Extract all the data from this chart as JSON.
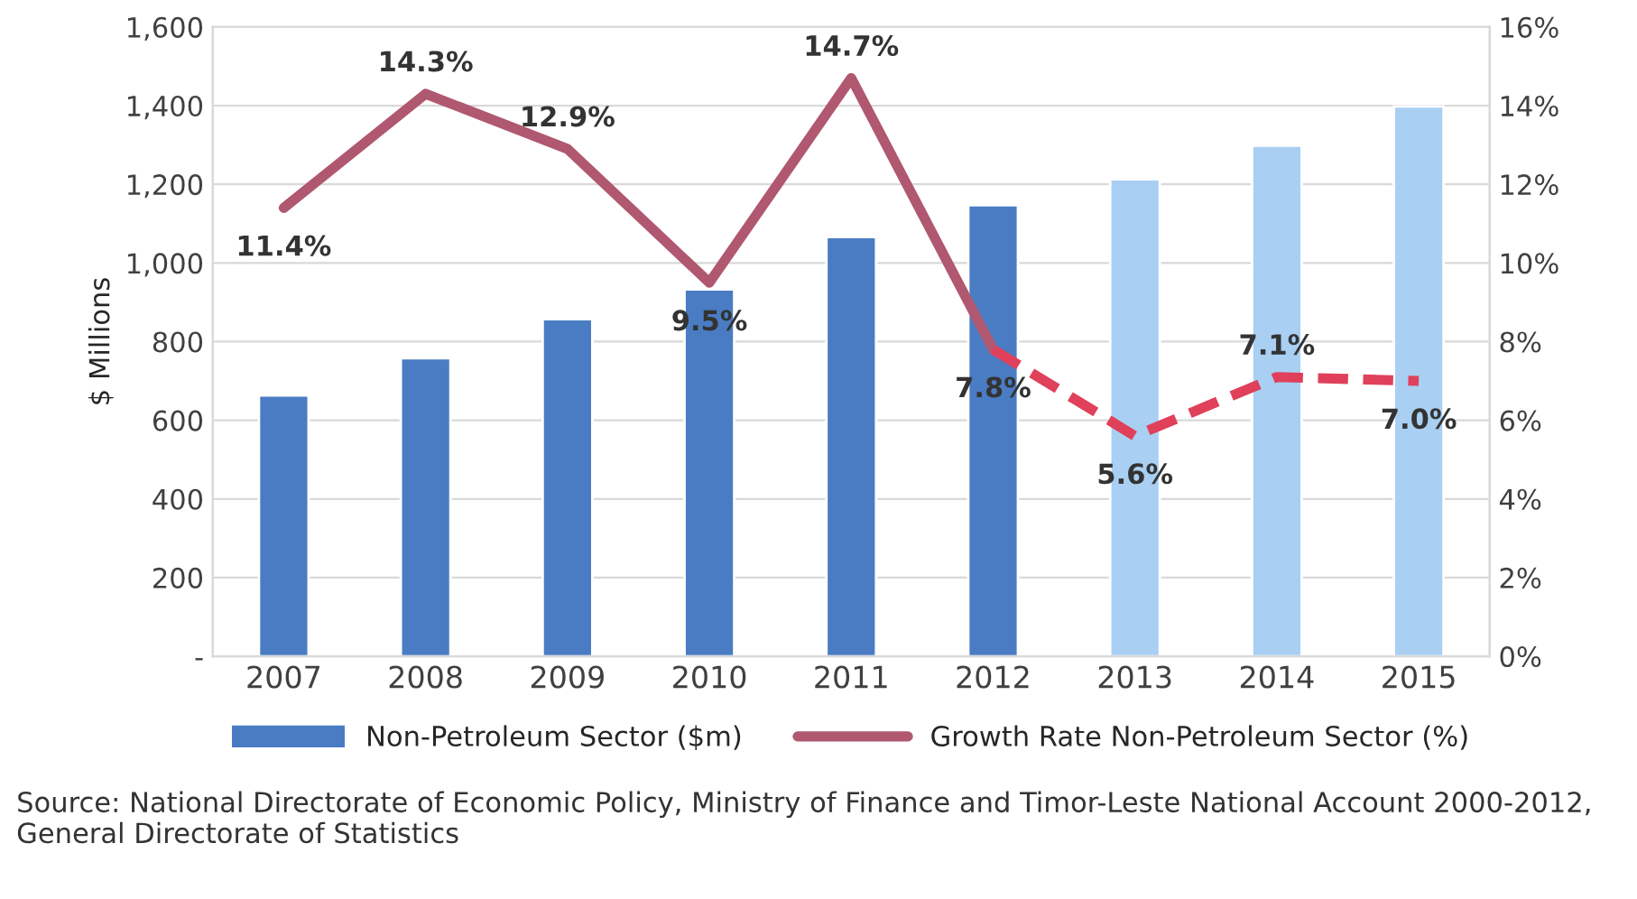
{
  "chart_data": {
    "type": "bar",
    "ylabel": "$ Millions",
    "categories": [
      "2007",
      "2008",
      "2009",
      "2010",
      "2011",
      "2012",
      "2013",
      "2014",
      "2015"
    ],
    "ylim": [
      0,
      1600
    ],
    "yticks": [
      {
        "value": 0,
        "label": "-"
      },
      200,
      400,
      600,
      800,
      {
        "value": 1000,
        "label": "1,000"
      },
      {
        "value": 1200,
        "label": "1,200"
      },
      {
        "value": 1400,
        "label": "1,400"
      },
      {
        "value": 1600,
        "label": "1,600"
      }
    ],
    "y2lim": [
      0,
      16
    ],
    "y2ticks": [
      {
        "value": 0,
        "label": "0%"
      },
      {
        "value": 2,
        "label": "2%"
      },
      {
        "value": 4,
        "label": "4%"
      },
      {
        "value": 6,
        "label": "6%"
      },
      {
        "value": 8,
        "label": "8%"
      },
      {
        "value": 10,
        "label": "10%"
      },
      {
        "value": 12,
        "label": "12%"
      },
      {
        "value": 14,
        "label": "14%"
      },
      {
        "value": 16,
        "label": "16%"
      }
    ],
    "grid": "y",
    "legend": "bottom",
    "series": [
      {
        "name": "Non-Petroleum Sector ($m)",
        "color": "#4a7cc4",
        "colors": [
          "#4a7cc4",
          "#4a7cc4",
          "#4a7cc4",
          "#4a7cc4",
          "#4a7cc4",
          "#4a7cc4",
          "#a9cff2",
          "#a9cff2",
          "#a9cff2"
        ],
        "values": [
          663,
          758,
          857,
          933,
          1066,
          1147,
          1213,
          1298,
          1398
        ]
      },
      {
        "name": "Growth Rate Non-Petroleum Sector (%)",
        "type": "line",
        "axis": "y2",
        "color": "#b05870",
        "line_style": "solid",
        "values": [
          11.4,
          14.3,
          12.9,
          9.5,
          14.7,
          7.8,
          null,
          null,
          null
        ],
        "value_labels": [
          "11.4%",
          "14.3%",
          "12.9%",
          "9.5%",
          "14.7%",
          "7.8%",
          null,
          null,
          null
        ]
      },
      {
        "type": "line",
        "axis": "y2",
        "color": "#e0405a",
        "line_style": "dashed",
        "values": [
          null,
          null,
          null,
          null,
          null,
          7.8,
          5.6,
          7.1,
          7.0
        ],
        "value_labels": [
          null,
          null,
          null,
          null,
          null,
          null,
          "5.6%",
          "7.1%",
          "7.0%"
        ]
      }
    ],
    "annotations": [
      "Source: National Directorate of Economic Policy, Ministry of Finance and Timor-Leste National Account 2000-2012, General Directorate of Statistics"
    ]
  }
}
